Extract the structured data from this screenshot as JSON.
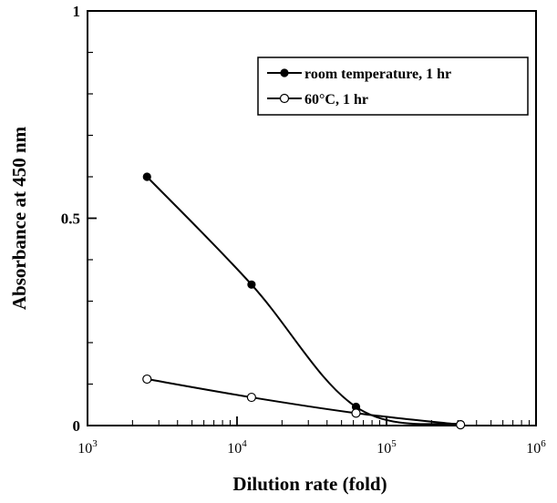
{
  "chart_data": {
    "type": "line",
    "xlabel": "Dilution rate (fold)",
    "ylabel": "Absorbance at 450 nm",
    "x_scale": "log",
    "xlim": [
      1000,
      1000000
    ],
    "ylim": [
      0,
      1
    ],
    "x_ticks": [
      {
        "base": "10",
        "exp": "3",
        "value": 1000
      },
      {
        "base": "10",
        "exp": "4",
        "value": 10000
      },
      {
        "base": "10",
        "exp": "5",
        "value": 100000
      },
      {
        "base": "10",
        "exp": "6",
        "value": 1000000
      }
    ],
    "y_ticks": [
      {
        "label": "0",
        "value": 0
      },
      {
        "label": "0.5",
        "value": 0.5
      },
      {
        "label": "1",
        "value": 1
      }
    ],
    "y_minor_ticks": [
      0.1,
      0.2,
      0.3,
      0.4,
      0.6,
      0.7,
      0.8,
      0.9
    ],
    "grid": false,
    "legend_position": "top-right",
    "series": [
      {
        "name": "room temperature, 1 hr",
        "marker": "filled-circle",
        "color": "#000000",
        "x": [
          2500,
          12500,
          62500,
          312500
        ],
        "y": [
          0.6,
          0.34,
          0.045,
          0.003
        ]
      },
      {
        "name": "60°C, 1 hr",
        "marker": "open-circle",
        "color": "#000000",
        "x": [
          2500,
          12500,
          62500,
          312500
        ],
        "y": [
          0.112,
          0.068,
          0.03,
          0.002
        ]
      }
    ]
  }
}
